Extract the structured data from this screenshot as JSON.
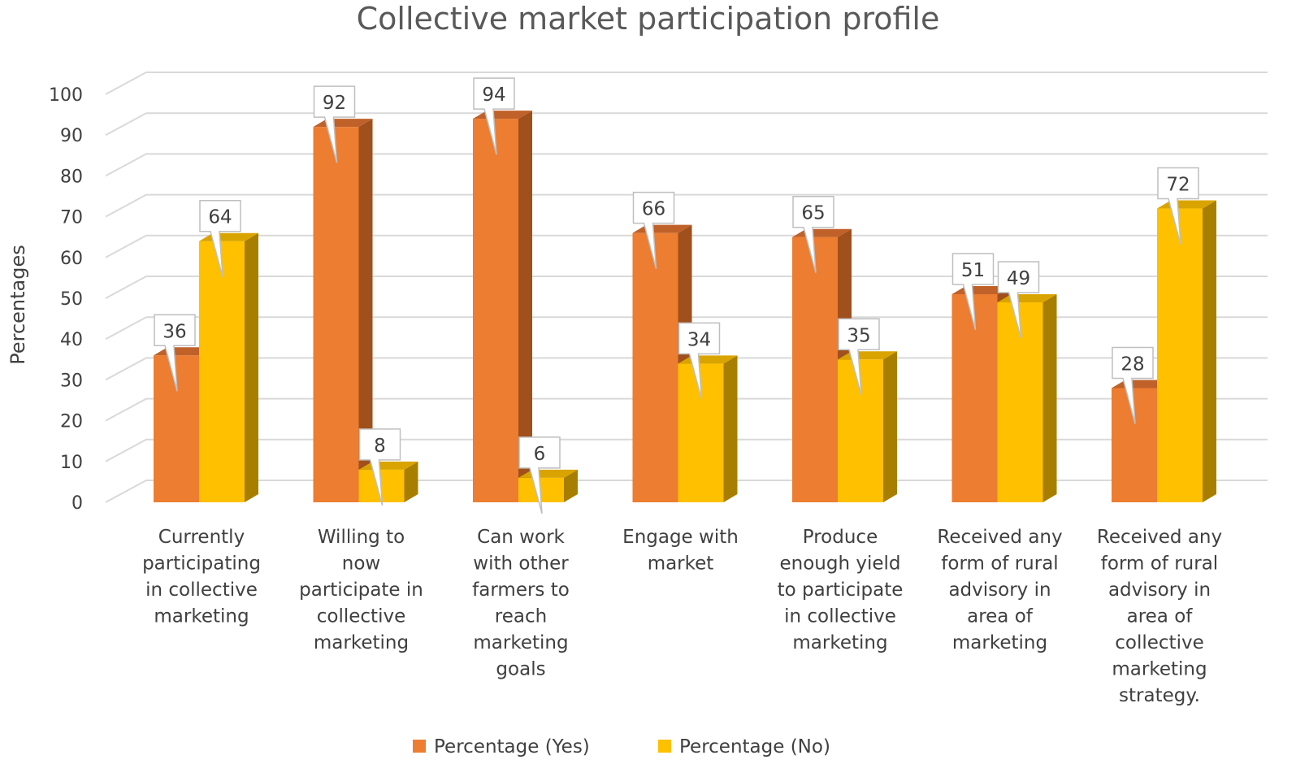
{
  "chart_data": {
    "type": "bar",
    "title": "Collective market participation profile",
    "ylabel": "Percentages",
    "ylim": [
      0,
      100
    ],
    "yticks": [
      0,
      10,
      20,
      30,
      40,
      50,
      60,
      70,
      80,
      90,
      100
    ],
    "grid": true,
    "legend_position": "bottom",
    "categories": [
      [
        "Currently",
        "participating",
        "in collective",
        "marketing"
      ],
      [
        "Willing to",
        "now",
        "participate in",
        "collective",
        "marketing"
      ],
      [
        "Can work",
        "with other",
        "farmers to",
        "reach",
        "marketing",
        "goals"
      ],
      [
        "Engage with",
        "market"
      ],
      [
        "Produce",
        "enough yield",
        "to participate",
        "in collective",
        "marketing"
      ],
      [
        "Received any",
        "form of rural",
        "advisory in",
        "area of",
        "marketing"
      ],
      [
        "Received any",
        "form of rural",
        "advisory in",
        "area of",
        "collective",
        "marketing",
        "strategy."
      ]
    ],
    "series": [
      {
        "name": "Percentage (Yes)",
        "color": "#ED7D31",
        "side_color": "#A0501C",
        "top_color": "#C0612A",
        "values": [
          36,
          92,
          94,
          66,
          65,
          51,
          28
        ]
      },
      {
        "name": "Percentage (No)",
        "color": "#FFC000",
        "side_color": "#A87E00",
        "top_color": "#D9A400",
        "values": [
          64,
          8,
          6,
          34,
          35,
          49,
          72
        ]
      }
    ]
  }
}
